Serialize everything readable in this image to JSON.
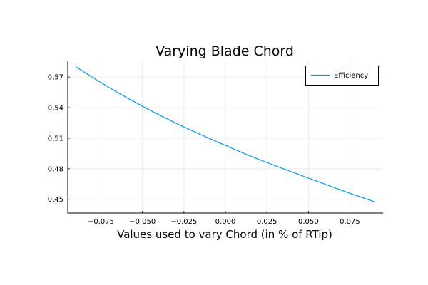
{
  "chart_data": {
    "type": "line",
    "title": "Varying Blade Chord",
    "xlabel": "Values used to vary Chord (in % of RTip)",
    "ylabel": "",
    "xlim": [
      -0.095,
      0.095
    ],
    "ylim": [
      0.4365,
      0.5855
    ],
    "x_ticks": [
      -0.075,
      -0.05,
      -0.025,
      0.0,
      0.025,
      0.05,
      0.075
    ],
    "x_tick_labels": [
      "−0.075",
      "−0.050",
      "−0.025",
      "0.000",
      "0.025",
      "0.050",
      "0.075"
    ],
    "y_ticks": [
      0.45,
      0.48,
      0.51,
      0.54,
      0.57
    ],
    "y_tick_labels": [
      "0.45",
      "0.48",
      "0.51",
      "0.54",
      "0.57"
    ],
    "grid": true,
    "legend_position": "top-right",
    "series": [
      {
        "name": "Efficiency",
        "color": "#009af9",
        "x": [
          -0.09,
          -0.075,
          -0.06,
          -0.045,
          -0.03,
          -0.015,
          0.0,
          0.015,
          0.03,
          0.045,
          0.06,
          0.075,
          0.09
        ],
        "y": [
          0.58,
          0.5646,
          0.5503,
          0.5371,
          0.5249,
          0.5136,
          0.5029,
          0.4925,
          0.483,
          0.4739,
          0.4648,
          0.4559,
          0.4475
        ]
      }
    ]
  }
}
